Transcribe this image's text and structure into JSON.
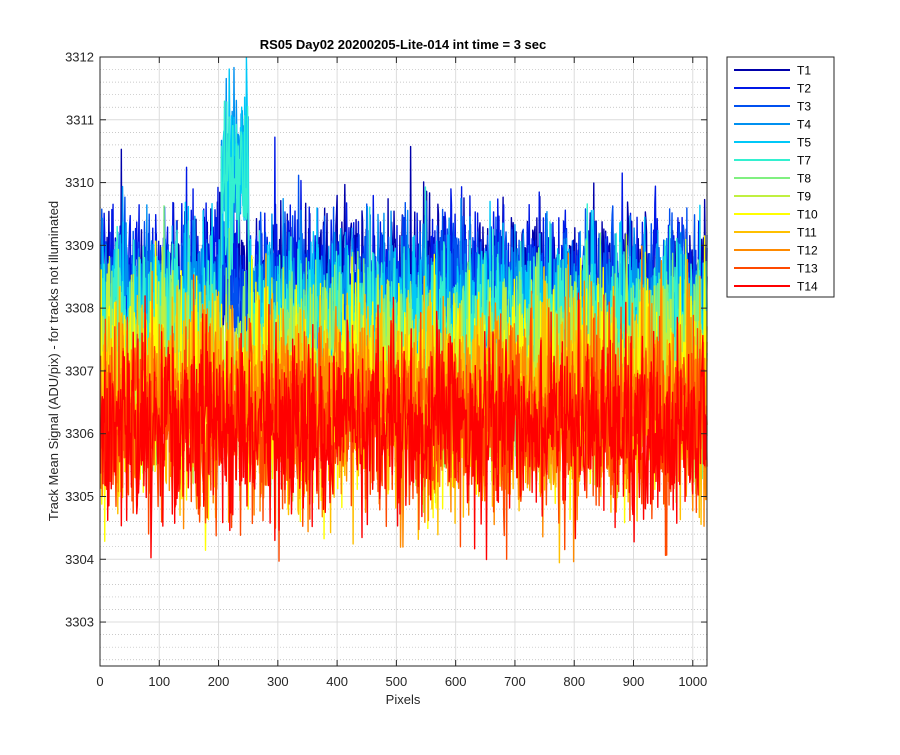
{
  "chart_data": {
    "type": "line",
    "title": "RS05 Day02 20200205-Lite-014 int time = 3 sec",
    "xlabel": "Pixels",
    "ylabel": "Track Mean Signal (ADU/pix) - for tracks not illuminated",
    "xlim": [
      0,
      1024
    ],
    "ylim": [
      3302.3,
      3312
    ],
    "x_ticks": [
      0,
      100,
      200,
      300,
      400,
      500,
      600,
      700,
      800,
      900,
      1000
    ],
    "y_ticks": [
      3303,
      3304,
      3305,
      3306,
      3307,
      3308,
      3309,
      3310,
      3311,
      3312
    ],
    "grid": true,
    "minor_grid": true,
    "legend_position": "outside-top-right",
    "x": {
      "start": 1,
      "end": 1024,
      "step": 1
    },
    "series": [
      {
        "name": "T1",
        "color": "#0000AA",
        "mean": 3308.4,
        "spread": 0.65
      },
      {
        "name": "T2",
        "color": "#0018E6",
        "mean": 3308.3,
        "spread": 0.65
      },
      {
        "name": "T3",
        "color": "#0050F0",
        "mean": 3308.2,
        "spread": 0.62
      },
      {
        "name": "T4",
        "color": "#0090F0",
        "mean": 3308.0,
        "spread": 0.62
      },
      {
        "name": "T5",
        "color": "#00C8F8",
        "mean": 3307.8,
        "spread": 0.62
      },
      {
        "name": "T7",
        "color": "#33F0D0",
        "mean": 3307.7,
        "spread": 0.65
      },
      {
        "name": "T8",
        "color": "#80F080",
        "mean": 3307.1,
        "spread": 0.75
      },
      {
        "name": "T9",
        "color": "#C0F040",
        "mean": 3306.9,
        "spread": 0.8
      },
      {
        "name": "T10",
        "color": "#FFFF00",
        "mean": 3306.7,
        "spread": 0.8
      },
      {
        "name": "T11",
        "color": "#FFC000",
        "mean": 3306.6,
        "spread": 0.8
      },
      {
        "name": "T12",
        "color": "#FF8A00",
        "mean": 3306.4,
        "spread": 0.78
      },
      {
        "name": "T13",
        "color": "#FF4A00",
        "mean": 3306.2,
        "spread": 0.78
      },
      {
        "name": "T14",
        "color": "#FF0000",
        "mean": 3306.1,
        "spread": 0.72
      }
    ]
  }
}
